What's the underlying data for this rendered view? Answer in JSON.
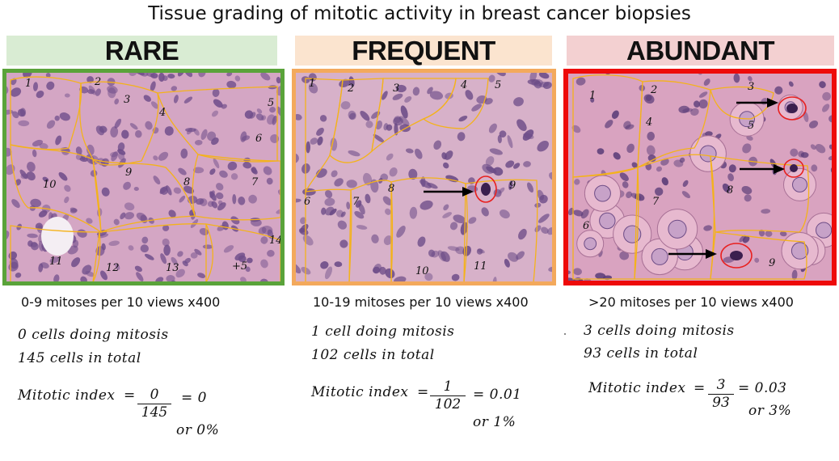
{
  "title": "Tissue grading of mitotic activity in breast cancer biopsies",
  "panels": [
    {
      "label": "RARE",
      "banner_color": "#d9ecd3",
      "frame_color": "#5aa33a",
      "region_numbers": [
        "1",
        "2",
        "3",
        "4",
        "5",
        "6",
        "7",
        "8",
        "9",
        "10",
        "11",
        "12",
        "13",
        "14",
        "+5"
      ],
      "rate": "0-9 mitoses per 10 views x400",
      "cells_mitosis": "0 cells doing mitosis",
      "cells_total": "145 cells in total",
      "index_label": "Mitotic index",
      "numerator": "0",
      "denominator": "145",
      "result": "= 0",
      "percent": "or 0%"
    },
    {
      "label": "FREQUENT",
      "banner_color": "#fbe4cf",
      "frame_color": "#f3a95c",
      "region_numbers": [
        "1",
        "2",
        "3",
        "4",
        "5",
        "6",
        "7",
        "8",
        "9",
        "10",
        "11"
      ],
      "rate": "10-19 mitoses per 10 views x400",
      "cells_mitosis": "1 cell doing mitosis",
      "cells_total": "102 cells in total",
      "index_label": "Mitotic index",
      "numerator": "1",
      "denominator": "102",
      "result": "= 0.01",
      "percent": "or 1%"
    },
    {
      "label": "ABUNDANT",
      "banner_color": "#f3d0d1",
      "frame_color": "#ee0a0a",
      "region_numbers": [
        "1",
        "2",
        "3",
        "4",
        "5",
        "6",
        "7",
        "8",
        "9"
      ],
      "rate": ">20 mitoses per 10 views x400",
      "cells_mitosis": "3 cells doing mitosis",
      "cells_total": "93 cells in total",
      "index_label": "Mitotic index",
      "numerator": "3",
      "denominator": "93",
      "result": "= 0.03",
      "percent": "or 3%"
    }
  ]
}
